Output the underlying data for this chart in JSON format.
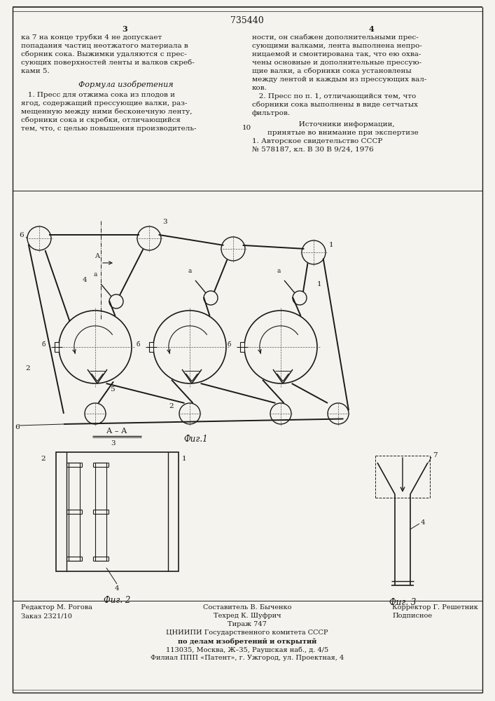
{
  "title": "735440",
  "bg_color": "#f5f3ee",
  "text_color": "#1a1a1a",
  "col1_text": [
    "ка 7 на конце трубки 4 не допускает",
    "попадания частиц неотжатого материала в",
    "сборник сока. Выжимки удаляются с прес-",
    "сующих поверхностей ленты и валков скреб-",
    "ками 5."
  ],
  "formula_title": "Формула изобретения",
  "formula_text": [
    "   1. Пресс для отжима сока из плодов и",
    "ягод, содержащий прессующие валки, раз-",
    "мещенную между ними бесконечную ленту,",
    "сборники сока и скребки, отличающийся",
    "тем, что, с целью повышения производитель-"
  ],
  "col2_text": [
    "ности, он снабжен дополнительными прес-",
    "сующими валками, лента выполнена непро-",
    "ницаемой и смонтирована так, что ею охва-",
    "чены основные и дополнительные прессую-",
    "щие валки, а сборники сока установлены",
    "между лентой и каждым из прессующих вал-",
    "ков.",
    "   2. Пресс по п. 1, отличающийся тем, что",
    "сборники сока выполнены в виде сетчатых",
    "фильтров."
  ],
  "sources_title": "   Источники информации,",
  "sources_subtitle": "принятые во внимание при экспертизе",
  "sources_text": [
    "1. Авторское свидетельство СССР",
    "№ 578187, кл. В 30 В 9/24, 1976"
  ],
  "fig1_label": "Фиг.1",
  "fig2_label": "Фиг. 2",
  "fig3_label": "Фиг. 3",
  "section_label": "А – А",
  "line_number": "10",
  "footer_left_line1": "Редактор М. Рогова",
  "footer_left_line2": "Заказ 2321/10",
  "footer_mid_line1": "Составитель В. Быченко",
  "footer_mid_line2": "Техред К. Шуфрич",
  "footer_mid_line3": "Тираж 747",
  "footer_right_line1": "Корректор Г. Решетник",
  "footer_right_line2": "Подписное",
  "footer_org1": "ЦНИИПИ Государственного комитета СССР",
  "footer_org2": "по делам изобретений и открытий",
  "footer_org3": "113035, Москва, Ж–35, Раушская наб., д. 4/5",
  "footer_org4": "Филиал ППП «Патент», г. Ужгород, ул. Проектная, 4"
}
